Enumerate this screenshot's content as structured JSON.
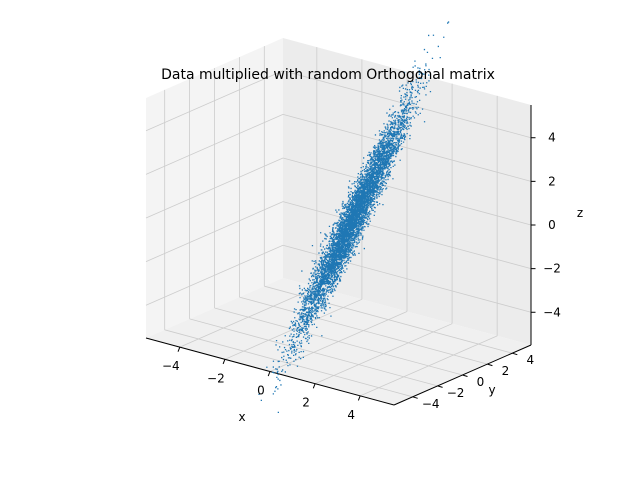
{
  "chart_data": {
    "type": "scatter",
    "projection": "3d",
    "title": "Data multiplied with random Orthogonal matrix",
    "xlabel": "x",
    "ylabel": "y",
    "zlabel": "z",
    "xlim": [
      -5.5,
      5.5
    ],
    "ylim": [
      -5.5,
      5.5
    ],
    "zlim": [
      -5.5,
      5.5
    ],
    "x_ticks": [
      -4,
      -2,
      0,
      2,
      4
    ],
    "y_ticks": [
      -4,
      -2,
      0,
      2,
      4
    ],
    "z_ticks": [
      -4,
      -2,
      0,
      2,
      4
    ],
    "x_tick_labels": [
      "−4",
      "−2",
      "0",
      "2",
      "4"
    ],
    "y_tick_labels": [
      "−4",
      "−2",
      "0",
      "2",
      "4"
    ],
    "z_tick_labels": [
      "−4",
      "−2",
      "0",
      "2",
      "4"
    ],
    "grid": true,
    "legend": "none",
    "marker_color": "#1f77b4",
    "pane_color": "#f2f2f2",
    "grid_color": "#cccccc",
    "cloud": {
      "description_points": "elongated Gaussian cloud along a line through the origin",
      "point_count": 6000,
      "axis_end_a": [
        1.2,
        4.5,
        6.0
      ],
      "axis_end_b": [
        -0.7,
        -3.2,
        -6.0
      ],
      "spread": 0.5
    }
  }
}
